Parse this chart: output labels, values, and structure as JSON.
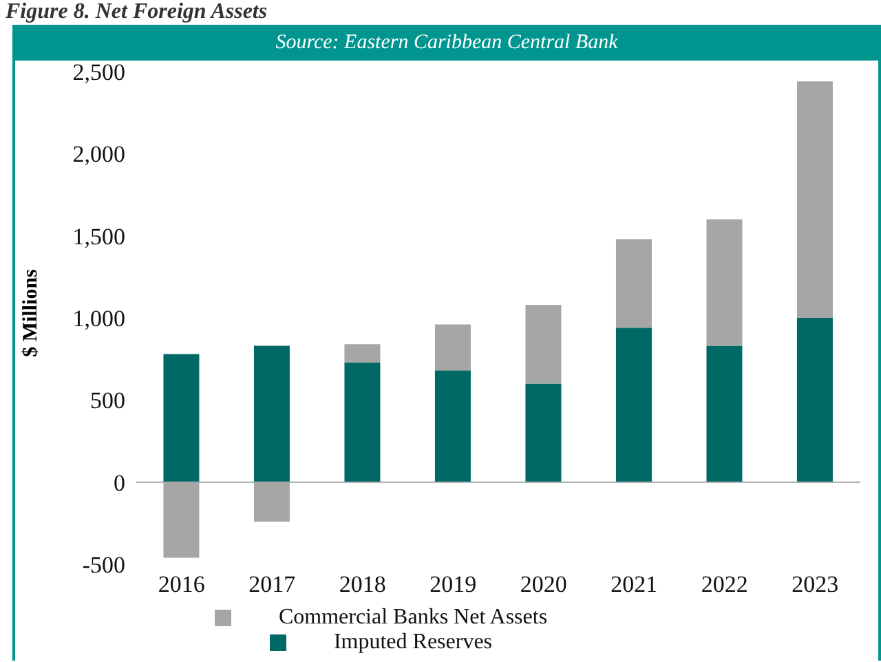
{
  "chart_data": {
    "type": "bar",
    "title": "Figure 8. Net Foreign Assets",
    "annotations": [
      "Source: Eastern Caribbean Central Bank"
    ],
    "ylabel": "$ Millions",
    "categories": [
      "2016",
      "2017",
      "2018",
      "2019",
      "2020",
      "2021",
      "2022",
      "2023"
    ],
    "stacked": true,
    "series": [
      {
        "name": "Imputed Reserves",
        "color": "#006966",
        "values": [
          780,
          830,
          730,
          680,
          600,
          940,
          830,
          1000
        ]
      },
      {
        "name": "Commercial Banks Net Assets",
        "color": "#a6a6a6",
        "values": [
          -460,
          -240,
          110,
          280,
          480,
          540,
          770,
          1440
        ]
      }
    ],
    "ylim": [
      -500,
      2500
    ],
    "yticks": [
      -500,
      0,
      500,
      {
        "value": 1000,
        "label": "1,000"
      },
      {
        "value": 1500,
        "label": "1,500"
      },
      {
        "value": 2000,
        "label": "2,000"
      },
      {
        "value": 2500,
        "label": "2,500"
      }
    ],
    "ref_lines": [
      {
        "axis": "y",
        "value": 0,
        "color": "#a6a6a6"
      }
    ],
    "grid": false,
    "legend": "bottom"
  }
}
